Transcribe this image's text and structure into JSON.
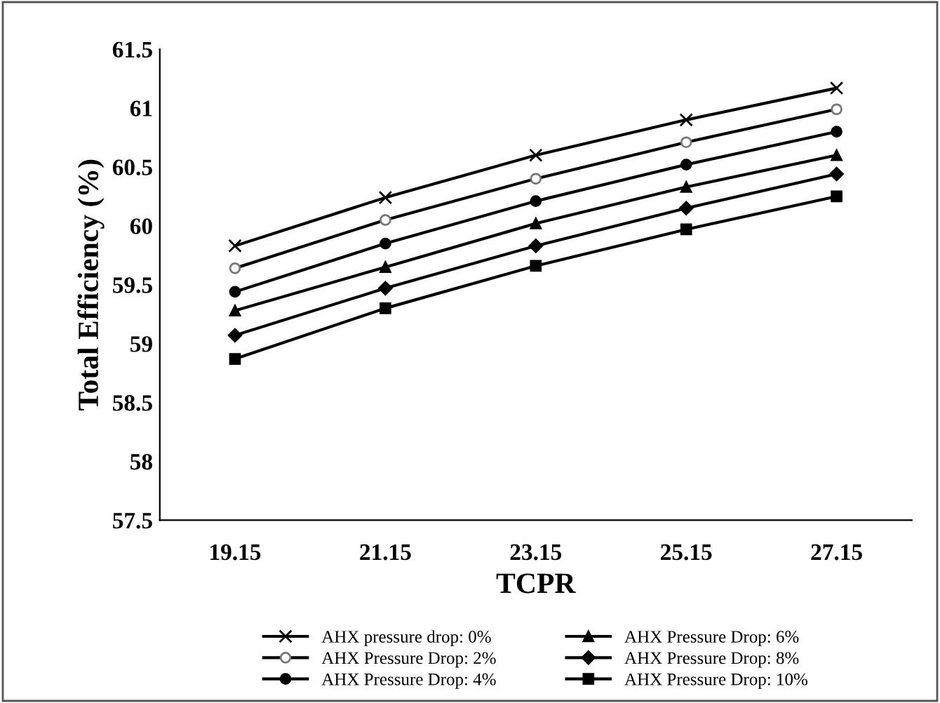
{
  "chart_data": {
    "type": "line",
    "xlabel": "TCPR",
    "ylabel": "Total Efficiency (%)",
    "categories": [
      "19.15",
      "21.15",
      "23.15",
      "25.15",
      "27.15"
    ],
    "ylim": [
      57.5,
      61.5
    ],
    "yticks": [
      57.5,
      58,
      58.5,
      59,
      59.5,
      60,
      60.5,
      61,
      61.5
    ],
    "grid": false,
    "legend": "bottom",
    "line_style": "solid",
    "series": [
      {
        "name": "AHX pressure drop: 0%",
        "color": "#000000",
        "marker": "cross",
        "values": [
          59.83,
          60.24,
          60.6,
          60.9,
          61.17
        ]
      },
      {
        "name": "AHX Pressure Drop: 2%",
        "color": "#000000",
        "marker": "circle",
        "values": [
          59.64,
          60.05,
          60.4,
          60.71,
          60.99
        ]
      },
      {
        "name": "AHX Pressure Drop: 4%",
        "color": "#000000",
        "marker": "circle",
        "values": [
          59.44,
          59.85,
          60.21,
          60.52,
          60.8
        ]
      },
      {
        "name": "AHX Pressure Drop: 6%",
        "color": "#000000",
        "marker": "triangle",
        "values": [
          59.28,
          59.65,
          60.02,
          60.33,
          60.6
        ]
      },
      {
        "name": "AHX Pressure Drop: 8%",
        "color": "#000000",
        "marker": "diamond",
        "values": [
          59.07,
          59.47,
          59.83,
          60.15,
          60.44
        ]
      },
      {
        "name": "AHX Pressure Drop: 10%",
        "color": "#000000",
        "marker": "square",
        "values": [
          58.87,
          59.3,
          59.66,
          59.97,
          60.25
        ]
      }
    ]
  }
}
